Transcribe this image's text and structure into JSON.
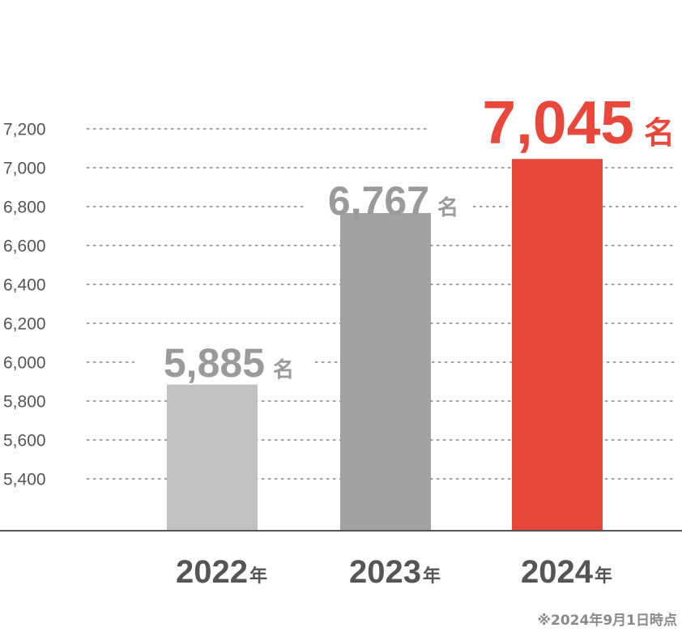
{
  "chart_data": {
    "type": "bar",
    "categories": [
      "2022",
      "2023",
      "2024"
    ],
    "category_suffix": "年",
    "values": [
      5885,
      6767,
      7045
    ],
    "value_labels": [
      "5,885",
      "6,767",
      "7,045"
    ],
    "value_unit": "名",
    "yticks": [
      "5,400",
      "5,600",
      "5,800",
      "6,000",
      "6,200",
      "6,400",
      "6,600",
      "6,800",
      "7,000",
      "7,200"
    ],
    "ytick_values": [
      5400,
      5600,
      5800,
      6000,
      6200,
      6400,
      6600,
      6800,
      7000,
      7200
    ],
    "grid": true,
    "legend": "none",
    "title": "",
    "xlabel": "",
    "ylabel": "",
    "bar_colors": [
      "#c1c1c1",
      "#a1a2a1",
      "#e8473b"
    ],
    "label_colors": [
      "#9a9a9a",
      "#9a9a9a",
      "#e8473b"
    ],
    "category_label_color": "#555555",
    "footnote": "※2024年9月1日時点"
  }
}
